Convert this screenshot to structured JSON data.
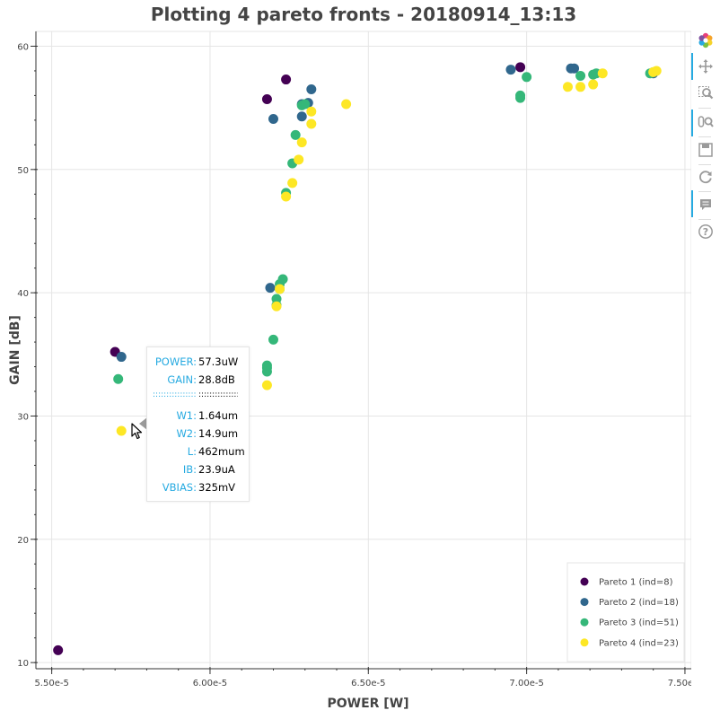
{
  "chart_data": {
    "type": "scatter",
    "title": "Plotting 4 pareto fronts - 20180914_13:13",
    "xlabel": "POWER [W]",
    "ylabel": "GAIN [dB]",
    "xlim": [
      5.45e-05,
      7.52e-05
    ],
    "ylim": [
      9.5,
      61.2
    ],
    "x_ticks": [
      5.5e-05,
      6e-05,
      6.5e-05,
      7e-05,
      7.5e-05
    ],
    "x_tick_labels": [
      "5.50e-5",
      "6.00e-5",
      "6.50e-5",
      "7.00e-5",
      "7.50e-5"
    ],
    "y_ticks": [
      10,
      20,
      30,
      40,
      50,
      60
    ],
    "y_tick_labels": [
      "10",
      "20",
      "30",
      "40",
      "50",
      "60"
    ],
    "grid": true,
    "legend_position": "bottom-right",
    "series": [
      {
        "name": "Pareto 1 (ind=8)",
        "color": "#440154",
        "points": [
          [
            5.52e-05,
            11.0
          ],
          [
            5.7e-05,
            35.2
          ],
          [
            6.18e-05,
            55.7
          ],
          [
            6.24e-05,
            57.3
          ],
          [
            6.98e-05,
            58.3
          ]
        ]
      },
      {
        "name": "Pareto 2 (ind=18)",
        "color": "#30678d",
        "points": [
          [
            5.72e-05,
            34.8
          ],
          [
            6.19e-05,
            40.4
          ],
          [
            6.2e-05,
            54.1
          ],
          [
            6.29e-05,
            54.3
          ],
          [
            6.29e-05,
            55.3
          ],
          [
            6.31e-05,
            55.4
          ],
          [
            6.32e-05,
            56.5
          ],
          [
            6.95e-05,
            58.1
          ],
          [
            7.14e-05,
            58.2
          ],
          [
            7.15e-05,
            58.2
          ],
          [
            7.4e-05,
            57.8
          ]
        ]
      },
      {
        "name": "Pareto 3 (ind=51)",
        "color": "#35b779",
        "points": [
          [
            5.71e-05,
            33.0
          ],
          [
            6.18e-05,
            33.6
          ],
          [
            6.18e-05,
            33.9
          ],
          [
            6.18e-05,
            34.1
          ],
          [
            6.2e-05,
            36.2
          ],
          [
            6.21e-05,
            39.0
          ],
          [
            6.21e-05,
            39.5
          ],
          [
            6.22e-05,
            40.3
          ],
          [
            6.22e-05,
            40.7
          ],
          [
            6.23e-05,
            41.1
          ],
          [
            6.24e-05,
            48.1
          ],
          [
            6.26e-05,
            50.5
          ],
          [
            6.27e-05,
            52.8
          ],
          [
            6.29e-05,
            55.2
          ],
          [
            6.3e-05,
            55.3
          ],
          [
            6.98e-05,
            55.8
          ],
          [
            6.98e-05,
            56.0
          ],
          [
            7e-05,
            57.5
          ],
          [
            7.17e-05,
            57.6
          ],
          [
            7.21e-05,
            57.7
          ],
          [
            7.22e-05,
            57.8
          ],
          [
            7.39e-05,
            57.8
          ],
          [
            7.4e-05,
            57.9
          ]
        ]
      },
      {
        "name": "Pareto 4 (ind=23)",
        "color": "#fde725",
        "points": [
          [
            5.72e-05,
            28.8
          ],
          [
            6.18e-05,
            32.5
          ],
          [
            6.21e-05,
            38.9
          ],
          [
            6.22e-05,
            40.3
          ],
          [
            6.24e-05,
            47.8
          ],
          [
            6.26e-05,
            48.9
          ],
          [
            6.28e-05,
            50.8
          ],
          [
            6.29e-05,
            52.2
          ],
          [
            6.32e-05,
            53.7
          ],
          [
            6.32e-05,
            54.7
          ],
          [
            6.43e-05,
            55.3
          ],
          [
            7.13e-05,
            56.7
          ],
          [
            7.17e-05,
            56.7
          ],
          [
            7.21e-05,
            56.9
          ],
          [
            7.24e-05,
            57.8
          ],
          [
            7.4e-05,
            57.9
          ],
          [
            7.41e-05,
            58.0
          ]
        ]
      }
    ]
  },
  "hover_tooltip": {
    "rows_top": [
      {
        "key": "POWER:",
        "value": "57.3uW"
      },
      {
        "key": "GAIN:",
        "value": "28.8dB"
      }
    ],
    "divider_key": "::::::::::::::::::::::::",
    "divider_value": ":::::::::::::::::::::::",
    "rows_bottom": [
      {
        "key": "W1:",
        "value": "1.64um"
      },
      {
        "key": "W2:",
        "value": "14.9um"
      },
      {
        "key": "L:",
        "value": "462mum"
      },
      {
        "key": "IB:",
        "value": "23.9uA"
      },
      {
        "key": "VBIAS:",
        "value": "325mV"
      }
    ]
  },
  "toolbar": {
    "tools": [
      "bokeh-logo-icon",
      "pan-icon",
      "box-zoom-icon",
      "wheel-zoom-icon",
      "save-icon",
      "reset-icon",
      "hover-icon",
      "help-icon"
    ]
  }
}
